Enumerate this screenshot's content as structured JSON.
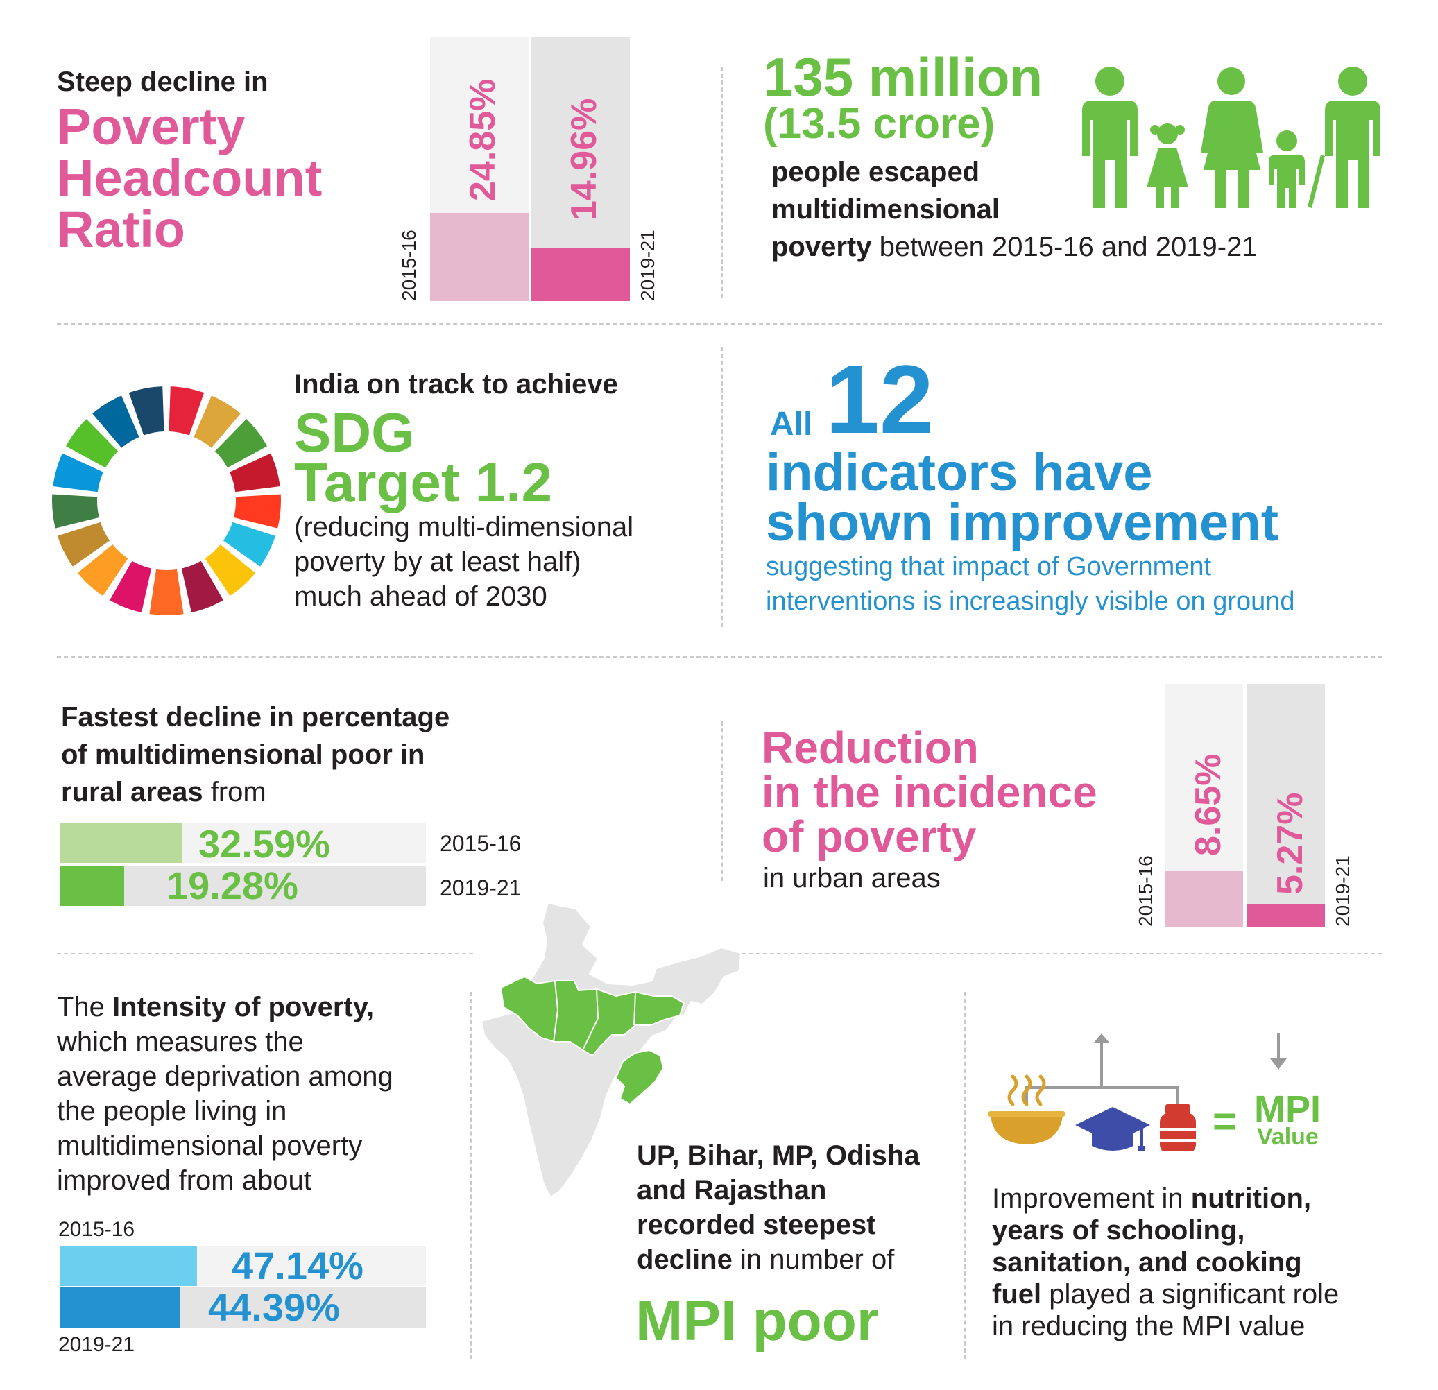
{
  "headcount": {
    "intro": "Steep decline in",
    "title_l1": "Poverty",
    "title_l2": "Headcount",
    "title_l3": "Ratio",
    "bars": [
      {
        "year": "2015-16",
        "value_label": "24.85%",
        "value": 24.85
      },
      {
        "year": "2019-21",
        "value_label": "14.96%",
        "value": 14.96
      }
    ]
  },
  "escaped": {
    "big": "135 million",
    "sub": "(13.5 crore)",
    "l1": "people escaped",
    "l2": "multidimensional",
    "l3_bold": "poverty",
    "l3_rest": " between 2015-16 and 2019-21",
    "icon": "family-icon",
    "color": "#6abf45"
  },
  "sdg": {
    "l1": "India on track to achieve",
    "t1": "SDG",
    "t2": "Target 1.2",
    "d1": "(reducing multi-dimensional",
    "d2": "poverty by at least half)",
    "d3": "much ahead of 2030",
    "wheel_icon": "sdg-wheel-icon",
    "wheel_colors": [
      "#e5243b",
      "#dda63a",
      "#4c9f38",
      "#c5192d",
      "#ff3a21",
      "#26bde2",
      "#fcc30b",
      "#a21942",
      "#fd6925",
      "#dd1367",
      "#fd9d24",
      "#bf8b2e",
      "#3f7e44",
      "#0a97d9",
      "#56c02b",
      "#00689d",
      "#19486a"
    ]
  },
  "indicators": {
    "all": "All",
    "num": "12",
    "l1": "indicators have",
    "l2": "shown improvement",
    "s1": "suggesting that impact of Government",
    "s2": "interventions is increasingly visible on ground",
    "color": "#2492d1"
  },
  "rural": {
    "l1": "Fastest decline in percentage",
    "l2": "of multidimensional poor in",
    "l3_bold": "rural areas",
    "l3_rest": " from",
    "bars": [
      {
        "year": "2015-16",
        "value_label": "32.59%",
        "value": 32.59,
        "color": "#b8db9b"
      },
      {
        "year": "2019-21",
        "value_label": "19.28%",
        "value": 19.28,
        "color": "#6abf45"
      }
    ]
  },
  "urban": {
    "t1": "Reduction",
    "t2": "in the incidence",
    "t3": "of poverty",
    "sub": "in urban areas",
    "bars": [
      {
        "year": "2015-16",
        "value_label": "8.65%",
        "value": 8.65
      },
      {
        "year": "2019-21",
        "value_label": "5.27%",
        "value": 5.27
      }
    ]
  },
  "intensity": {
    "l1_pre": "The ",
    "l1_bold": "Intensity of poverty,",
    "l2": "which measures the",
    "l3": "average deprivation among",
    "l4": "the people living in",
    "l5": "multidimensional poverty",
    "l6": "improved from about",
    "year1": "2015-16",
    "year2": "2019-21",
    "bars": [
      {
        "value_label": "47.14%",
        "value": 47.14,
        "color": "#6dcff0"
      },
      {
        "value_label": "44.39%",
        "value": 44.39,
        "color": "#2492d1"
      }
    ]
  },
  "states": {
    "map_icon": "india-map-icon",
    "l1": "UP, Bihar, MP, Odisha",
    "l2": "and Rajasthan",
    "l3": "recorded steepest",
    "l4_bold": "decline",
    "l4_rest": " in number of",
    "big": "MPI poor"
  },
  "mpi": {
    "equals": "=",
    "mpi": "MPI",
    "value": "Value",
    "p1_pre": "Improvement in ",
    "p1_bold": "nutrition,",
    "p2_bold": "years of schooling,",
    "p3_bold": "sanitation, and cooking",
    "p4_bold": "fuel",
    "p4_rest": " played a significant role",
    "p5": "in reducing the MPI value",
    "icons": [
      "food-bowl-icon",
      "graduation-cap-icon",
      "gas-cylinder-icon",
      "arrow-up-icon",
      "arrow-down-icon"
    ]
  }
}
